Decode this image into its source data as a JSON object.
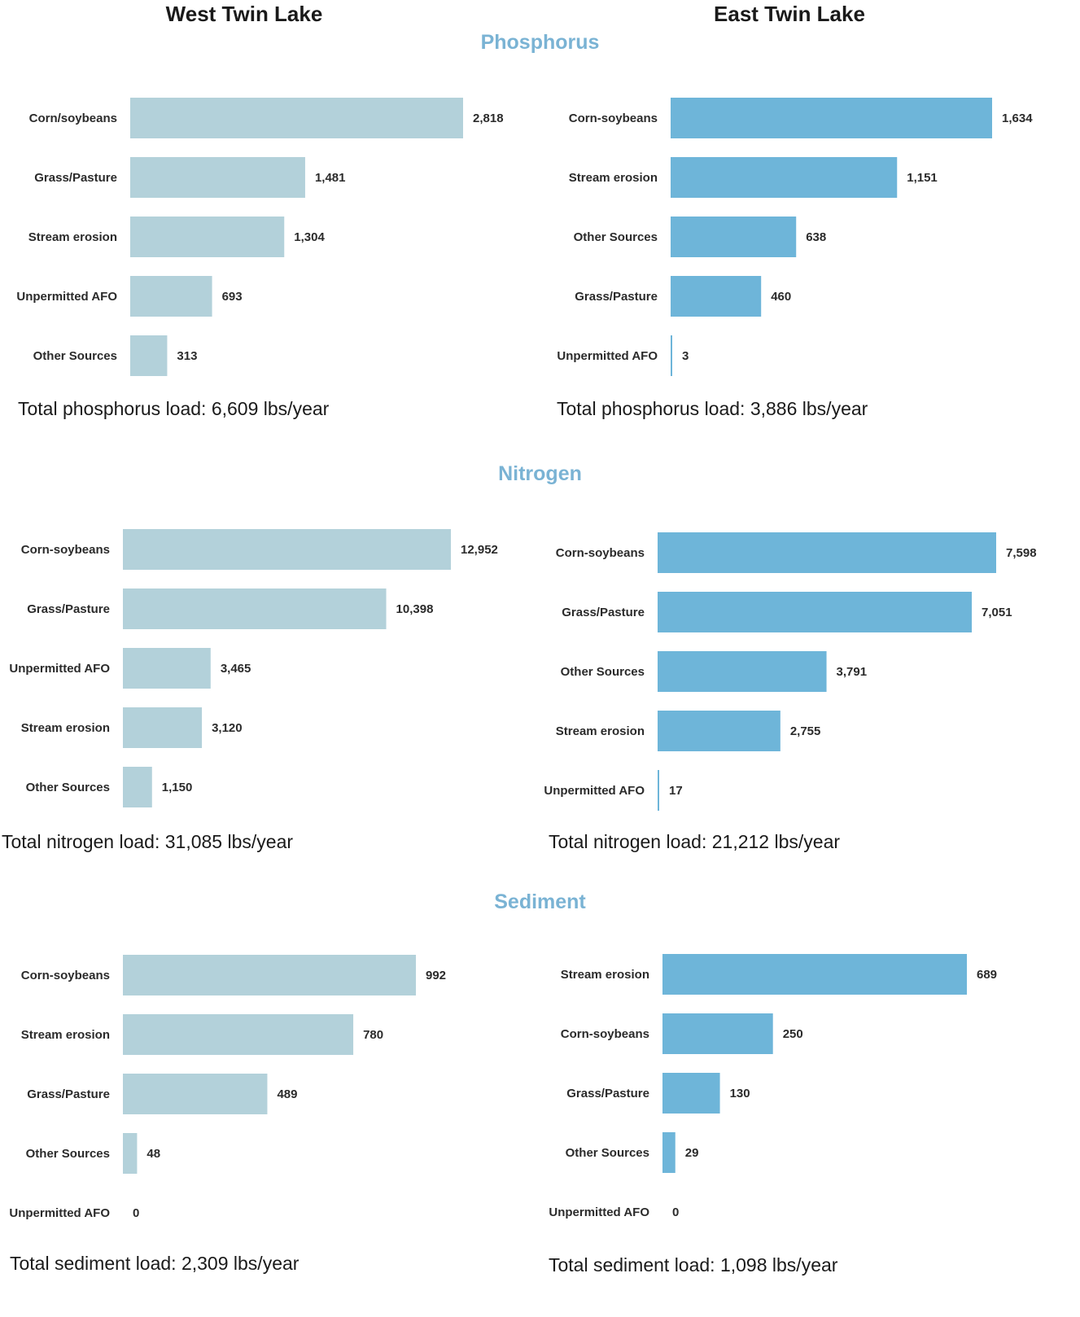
{
  "headings": {
    "west": "West Twin Lake",
    "east": "East Twin Lake"
  },
  "sections": {
    "phosphorus": "Phosphorus",
    "nitrogen": "Nitrogen",
    "sediment": "Sediment"
  },
  "colors": {
    "west_bar": "#b3d1da",
    "east_bar": "#6eb5d9",
    "section_title": "#7ab3d4"
  },
  "totals": {
    "west_phosphorus": "Total phosphorus load:  6,609 lbs/year",
    "east_phosphorus": "Total phosphorus load:  3,886 lbs/year",
    "west_nitrogen": "Total nitrogen load:  31,085 lbs/year",
    "east_nitrogen": "Total nitrogen load:  21,212 lbs/year",
    "west_sediment": "Total sediment load:  2,309 lbs/year",
    "east_sediment": "Total sediment load:  1,098 lbs/year"
  },
  "chart_data": [
    {
      "id": "west-phosphorus",
      "type": "bar",
      "orientation": "horizontal",
      "categories": [
        "Corn/soybeans",
        "Grass/Pasture",
        "Stream erosion",
        "Unpermitted AFO",
        "Other Sources"
      ],
      "values": [
        2818,
        1481,
        1304,
        693,
        313
      ],
      "value_labels": [
        "2,818",
        "1,481",
        "1,304",
        "693",
        "313"
      ],
      "xlim": [
        0,
        2818
      ]
    },
    {
      "id": "east-phosphorus",
      "type": "bar",
      "orientation": "horizontal",
      "categories": [
        "Corn-soybeans",
        "Stream erosion",
        "Other Sources",
        "Grass/Pasture",
        "Unpermitted AFO"
      ],
      "values": [
        1634,
        1151,
        638,
        460,
        3
      ],
      "value_labels": [
        "1,634",
        "1,151",
        "638",
        "460",
        "3"
      ],
      "xlim": [
        0,
        1634
      ]
    },
    {
      "id": "west-nitrogen",
      "type": "bar",
      "orientation": "horizontal",
      "categories": [
        "Corn-soybeans",
        "Grass/Pasture",
        "Unpermitted AFO",
        "Stream erosion",
        "Other Sources"
      ],
      "values": [
        12952,
        10398,
        3465,
        3120,
        1150
      ],
      "value_labels": [
        "12,952",
        "10,398",
        "3,465",
        "3,120",
        "1,150"
      ],
      "xlim": [
        0,
        12952
      ]
    },
    {
      "id": "east-nitrogen",
      "type": "bar",
      "orientation": "horizontal",
      "categories": [
        "Corn-soybeans",
        "Grass/Pasture",
        "Other Sources",
        "Stream erosion",
        "Unpermitted AFO"
      ],
      "values": [
        7598,
        7051,
        3791,
        2755,
        17
      ],
      "value_labels": [
        "7,598",
        "7,051",
        "3,791",
        "2,755",
        "17"
      ],
      "xlim": [
        0,
        7598
      ]
    },
    {
      "id": "west-sediment",
      "type": "bar",
      "orientation": "horizontal",
      "categories": [
        "Corn-soybeans",
        "Stream erosion",
        "Grass/Pasture",
        "Other Sources",
        "Unpermitted AFO"
      ],
      "values": [
        992,
        780,
        489,
        48,
        0
      ],
      "value_labels": [
        "992",
        "780",
        "489",
        "48",
        "0"
      ],
      "xlim": [
        0,
        992
      ]
    },
    {
      "id": "east-sediment",
      "type": "bar",
      "orientation": "horizontal",
      "categories": [
        "Stream erosion",
        "Corn-soybeans",
        "Grass/Pasture",
        "Other Sources",
        "Unpermitted AFO"
      ],
      "values": [
        689,
        250,
        130,
        29,
        0
      ],
      "value_labels": [
        "689",
        "250",
        "130",
        "29",
        "0"
      ],
      "xlim": [
        0,
        689
      ]
    }
  ]
}
